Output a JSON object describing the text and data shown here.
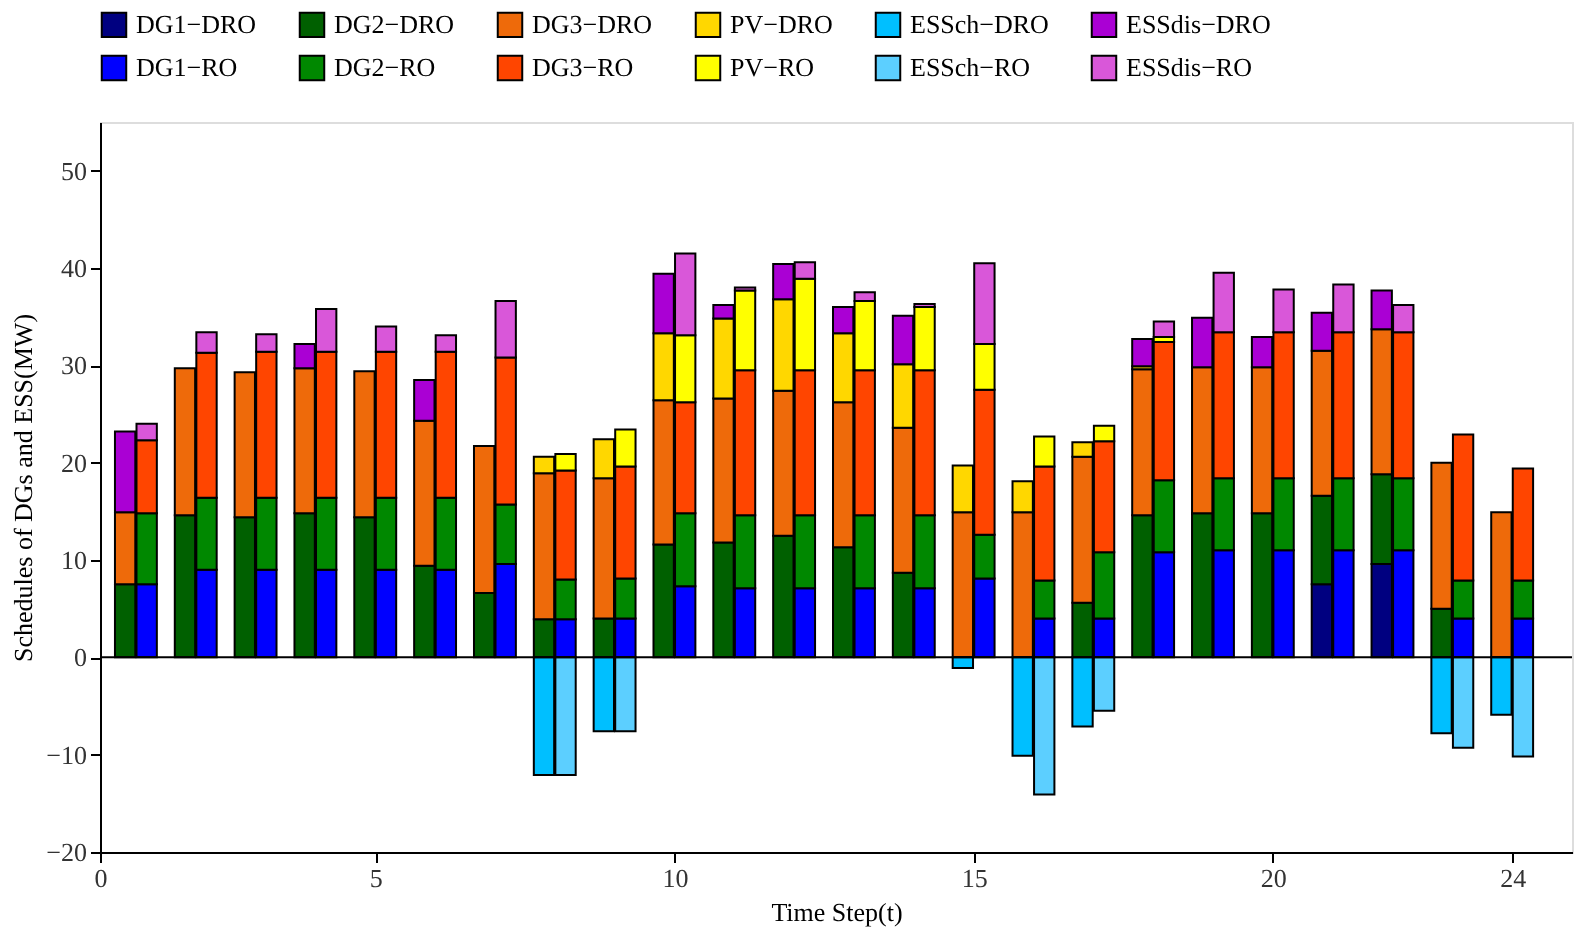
{
  "chart_data": {
    "type": "bar",
    "stacked": true,
    "xlabel": "Time Step(t)",
    "ylabel": "Schedules of DGs and ESS(MW)",
    "x": [
      0.82,
      1.18,
      1.82,
      2.18,
      2.82,
      3.18,
      3.82,
      4.18,
      4.82,
      5.18,
      5.82,
      6.18,
      6.82,
      7.18,
      7.82,
      8.18,
      8.82,
      9.18,
      9.82,
      10.18,
      10.82,
      11.18,
      11.82,
      12.18,
      12.82,
      13.18,
      13.82,
      14.18,
      14.82,
      15.18,
      15.82,
      16.18,
      16.82,
      17.18,
      17.82,
      18.18,
      18.82,
      19.18,
      19.82,
      20.18,
      20.82,
      21.18,
      21.82,
      22.18,
      22.82,
      23.18,
      23.82,
      24.18
    ],
    "xlim": [
      0.4,
      25
    ],
    "xticks": [
      {
        "value": 0.4,
        "label": "0"
      },
      5,
      10,
      15,
      20,
      24
    ],
    "ylim": [
      -20,
      55
    ],
    "yticks": [
      -20,
      -10,
      0,
      10,
      20,
      30,
      40,
      50
    ],
    "legend": "top",
    "series": [
      {
        "name": "DG1−DRO",
        "color": "#000080",
        "values": [
          null,
          null,
          null,
          null,
          null,
          null,
          null,
          null,
          null,
          null,
          null,
          null,
          null,
          null,
          null,
          null,
          null,
          null,
          null,
          null,
          null,
          null,
          null,
          null,
          null,
          null,
          null,
          null,
          null,
          null,
          null,
          null,
          null,
          null,
          null,
          null,
          null,
          null,
          null,
          null,
          7.5,
          null,
          9.6,
          null,
          null,
          null,
          null,
          null
        ]
      },
      {
        "name": "DG2−DRO",
        "color": "#006000",
        "values": [
          7.5,
          null,
          14.6,
          null,
          14.4,
          null,
          14.8,
          null,
          14.4,
          null,
          9.4,
          null,
          6.6,
          null,
          3.9,
          null,
          4.0,
          null,
          11.6,
          null,
          11.8,
          null,
          12.5,
          null,
          11.3,
          null,
          8.7,
          null,
          null,
          null,
          null,
          null,
          5.6,
          null,
          14.6,
          null,
          14.8,
          null,
          14.8,
          null,
          9.1,
          null,
          9.2,
          null,
          5.0,
          null,
          null,
          null
        ]
      },
      {
        "name": "DG3−DRO",
        "color": "#ee6a0a",
        "values": [
          7.4,
          null,
          15.1,
          null,
          14.9,
          null,
          14.9,
          null,
          15.0,
          null,
          14.9,
          null,
          15.1,
          null,
          15.0,
          null,
          14.4,
          null,
          14.8,
          null,
          14.8,
          null,
          14.9,
          null,
          14.9,
          null,
          14.9,
          null,
          14.9,
          null,
          14.9,
          null,
          15.0,
          null,
          15.0,
          null,
          15.0,
          null,
          15.0,
          null,
          14.9,
          null,
          14.9,
          null,
          15.0,
          null,
          14.9,
          null
        ]
      },
      {
        "name": "PV−DRO",
        "color": "#ffd700",
        "values": [
          null,
          null,
          null,
          null,
          null,
          null,
          null,
          null,
          null,
          null,
          null,
          null,
          null,
          null,
          1.7,
          null,
          4.0,
          null,
          6.9,
          null,
          8.2,
          null,
          9.4,
          null,
          7.1,
          null,
          6.5,
          null,
          4.8,
          null,
          3.2,
          null,
          1.5,
          null,
          0.3,
          null,
          null,
          null,
          null,
          null,
          null,
          null,
          null,
          null,
          null,
          null,
          null,
          null
        ]
      },
      {
        "name": "ESSch−DRO",
        "color": "#00bfff",
        "values": [
          null,
          null,
          null,
          null,
          null,
          null,
          null,
          null,
          null,
          null,
          null,
          null,
          null,
          null,
          -12.1,
          null,
          -7.6,
          null,
          null,
          null,
          null,
          null,
          null,
          null,
          null,
          null,
          null,
          null,
          -1.1,
          null,
          -10.1,
          null,
          -7.1,
          null,
          null,
          null,
          null,
          null,
          null,
          null,
          null,
          null,
          null,
          null,
          -7.8,
          null,
          -5.9,
          null
        ]
      },
      {
        "name": "ESSdis−DRO",
        "color": "#aa00d4",
        "values": [
          8.3,
          null,
          null,
          null,
          null,
          null,
          2.5,
          null,
          null,
          null,
          4.2,
          null,
          null,
          null,
          null,
          null,
          null,
          null,
          6.1,
          null,
          1.4,
          null,
          3.6,
          null,
          2.7,
          null,
          5.0,
          null,
          null,
          null,
          null,
          null,
          null,
          null,
          2.8,
          null,
          5.1,
          null,
          3.1,
          null,
          3.9,
          null,
          4.0,
          null,
          null,
          null,
          null,
          null
        ]
      },
      {
        "name": "DG1−RO",
        "color": "#0000ff",
        "values": [
          null,
          7.5,
          null,
          9.0,
          null,
          9.0,
          null,
          9.0,
          null,
          9.0,
          null,
          9.0,
          null,
          9.6,
          null,
          3.9,
          null,
          4.0,
          null,
          7.3,
          null,
          7.1,
          null,
          7.1,
          null,
          7.1,
          null,
          7.1,
          null,
          8.1,
          null,
          4.0,
          null,
          4.0,
          null,
          10.8,
          null,
          11.0,
          null,
          11.0,
          null,
          11.0,
          null,
          11.0,
          null,
          4.0,
          null,
          4.0
        ]
      },
      {
        "name": "DG2−RO",
        "color": "#008800",
        "values": [
          null,
          7.3,
          null,
          7.4,
          null,
          7.4,
          null,
          7.4,
          null,
          7.4,
          null,
          7.4,
          null,
          6.1,
          null,
          4.1,
          null,
          4.1,
          null,
          7.5,
          null,
          7.5,
          null,
          7.5,
          null,
          7.5,
          null,
          7.5,
          null,
          4.5,
          null,
          3.9,
          null,
          6.8,
          null,
          7.4,
          null,
          7.4,
          null,
          7.4,
          null,
          7.4,
          null,
          7.4,
          null,
          3.9,
          null,
          3.9
        ]
      },
      {
        "name": "DG3−RO",
        "color": "#ff4500",
        "values": [
          null,
          7.5,
          null,
          14.9,
          null,
          15.0,
          null,
          15.0,
          null,
          15.0,
          null,
          15.0,
          null,
          15.1,
          null,
          11.2,
          null,
          11.5,
          null,
          11.4,
          null,
          14.9,
          null,
          14.9,
          null,
          14.9,
          null,
          14.9,
          null,
          14.9,
          null,
          11.7,
          null,
          11.4,
          null,
          14.2,
          null,
          15.0,
          null,
          15.0,
          null,
          15.0,
          null,
          15.0,
          null,
          15.0,
          null,
          11.5
        ]
      },
      {
        "name": "PV−RO",
        "color": "#ffff00",
        "values": [
          null,
          null,
          null,
          null,
          null,
          null,
          null,
          null,
          null,
          null,
          null,
          null,
          null,
          null,
          null,
          1.7,
          null,
          3.8,
          null,
          6.9,
          null,
          8.2,
          null,
          9.4,
          null,
          7.1,
          null,
          6.5,
          null,
          4.7,
          null,
          3.1,
          null,
          1.6,
          null,
          0.5,
          null,
          null,
          null,
          null,
          null,
          null,
          null,
          null,
          null,
          null,
          null,
          null
        ]
      },
      {
        "name": "ESSch−RO",
        "color": "#5ccfff",
        "values": [
          null,
          null,
          null,
          null,
          null,
          null,
          null,
          null,
          null,
          null,
          null,
          null,
          null,
          null,
          null,
          -12.1,
          null,
          -7.6,
          null,
          null,
          null,
          null,
          null,
          null,
          null,
          null,
          null,
          null,
          null,
          null,
          null,
          -14.1,
          null,
          -5.5,
          null,
          null,
          null,
          null,
          null,
          null,
          null,
          null,
          null,
          null,
          null,
          -9.3,
          null,
          -10.2
        ]
      },
      {
        "name": "ESSdis−RO",
        "color": "#d957d9",
        "values": [
          null,
          1.7,
          null,
          2.1,
          null,
          1.8,
          null,
          4.4,
          null,
          2.6,
          null,
          1.7,
          null,
          5.8,
          null,
          null,
          null,
          null,
          null,
          8.4,
          null,
          0.3,
          null,
          1.7,
          null,
          0.9,
          null,
          0.3,
          null,
          8.3,
          null,
          null,
          null,
          null,
          null,
          1.6,
          null,
          6.1,
          null,
          4.4,
          null,
          4.9,
          null,
          2.8,
          null,
          null,
          null,
          null
        ]
      }
    ]
  }
}
